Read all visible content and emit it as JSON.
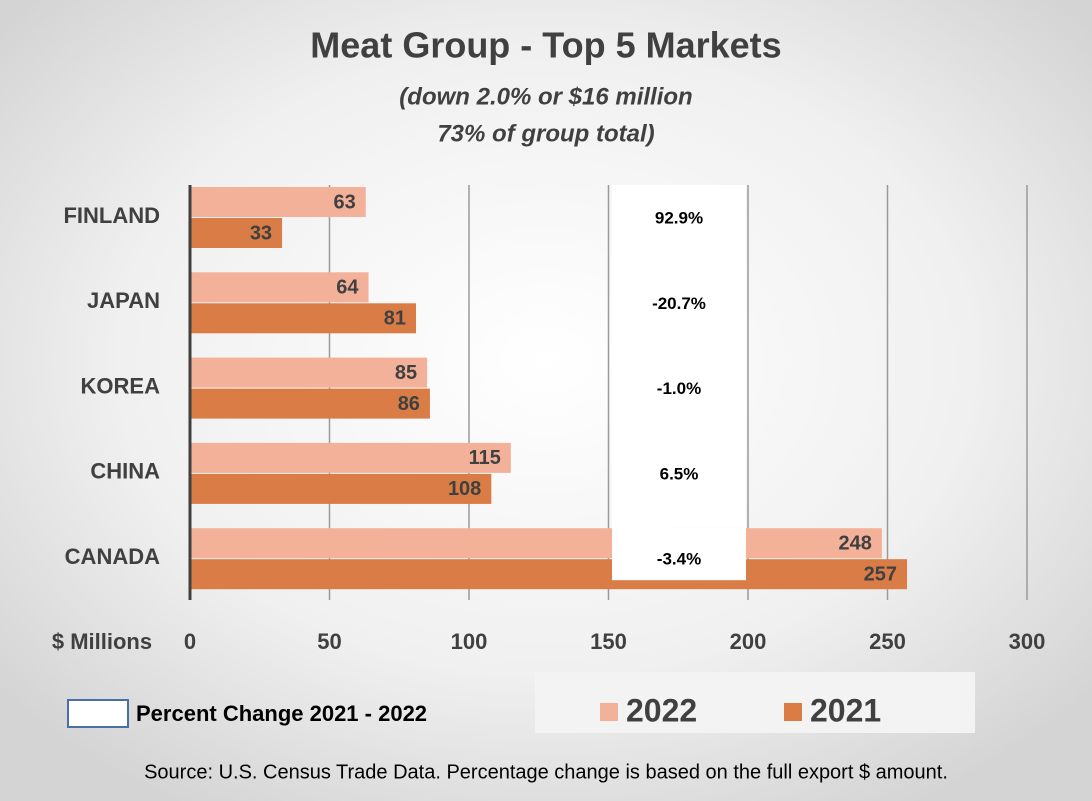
{
  "chart_data": {
    "type": "bar",
    "orientation": "horizontal",
    "title": "Meat Group - Top 5 Markets",
    "subtitle": [
      "(down 2.0% or $16 million",
      "73% of group total)"
    ],
    "x_label": "$ Millions",
    "categories": [
      "FINLAND",
      "JAPAN",
      "KOREA",
      "CHINA",
      "CANADA"
    ],
    "series": [
      {
        "name": "2022",
        "color": "#f4b19a",
        "values": [
          63,
          64,
          85,
          115,
          248
        ]
      },
      {
        "name": "2021",
        "color": "#d97c45",
        "values": [
          33,
          81,
          86,
          108,
          257
        ]
      }
    ],
    "percent_change": {
      "name": "Percent Change 2021 - 2022",
      "labels": [
        "92.9%",
        "-20.7%",
        "-1.0%",
        "6.5%",
        "-3.4%"
      ]
    },
    "xlim": [
      0,
      300
    ],
    "xticks": [
      0,
      50,
      100,
      150,
      200,
      250,
      300
    ],
    "grid": true,
    "source": "Source:  U.S. Census Trade Data. Percentage change is based on the full export $ amount."
  }
}
